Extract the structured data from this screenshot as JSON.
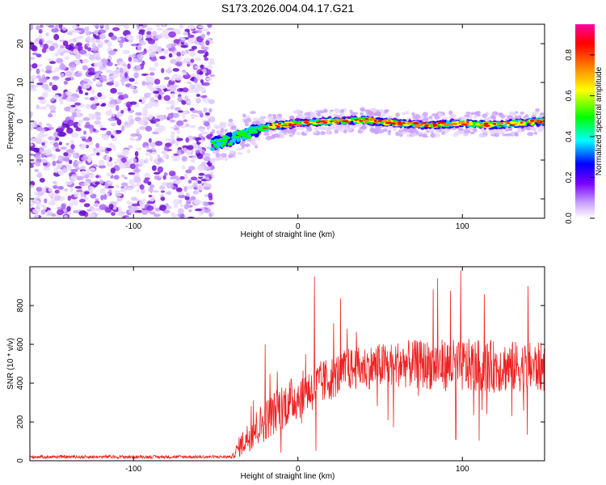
{
  "title": "S173.2026.004.04.17.G21",
  "colors": {
    "snr_line": "#ee2222",
    "noise_dots": "#8a2be2",
    "background": "#ffffff"
  },
  "chart_data": [
    {
      "type": "heatmap",
      "name": "spectrogram",
      "xlabel": "Height of straight line (km)",
      "ylabel": "Frequency (Hz)",
      "xlim": [
        -163,
        150
      ],
      "ylim": [
        -25,
        25
      ],
      "xticks": [
        -100,
        0,
        100
      ],
      "xtick_labels": [
        "-100",
        "0",
        "100"
      ],
      "yticks": [
        -20,
        -10,
        0,
        10,
        20
      ],
      "ytick_labels": [
        "-20",
        "-10",
        "0",
        "10",
        "20"
      ],
      "noise_region_x": [
        -163,
        -52
      ],
      "signal_track": [
        {
          "x": -52,
          "f": -6
        },
        {
          "x": -40,
          "f": -4.5
        },
        {
          "x": -30,
          "f": -3
        },
        {
          "x": -20,
          "f": -1.5
        },
        {
          "x": -10,
          "f": -1
        },
        {
          "x": 0,
          "f": -0.5
        },
        {
          "x": 20,
          "f": 0
        },
        {
          "x": 40,
          "f": 0.3
        },
        {
          "x": 60,
          "f": -0.5
        },
        {
          "x": 80,
          "f": -1
        },
        {
          "x": 100,
          "f": -0.5
        },
        {
          "x": 120,
          "f": -1
        },
        {
          "x": 150,
          "f": 0
        }
      ],
      "colorbar": {
        "label": "Normalized spectral amplitude",
        "range": [
          0,
          0.95
        ],
        "ticks": [
          0.0,
          0.2,
          0.4,
          0.6,
          0.8
        ],
        "tick_labels": [
          "0.0",
          "0.2",
          "0.4",
          "0.6",
          "0.8"
        ],
        "colors": [
          "#ffffff",
          "#c8a0ff",
          "#7b00ff",
          "#0000ff",
          "#00ffff",
          "#00ff00",
          "#ffff00",
          "#ff8000",
          "#ff0000",
          "#ff00a0"
        ]
      }
    },
    {
      "type": "line",
      "name": "snr",
      "xlabel": "Height of straight line (km)",
      "ylabel": "SNR (10 * v/v)",
      "xlim": [
        -163,
        150
      ],
      "ylim": [
        0,
        1000
      ],
      "xticks": [
        -100,
        0,
        100
      ],
      "xtick_labels": [
        "-100",
        "0",
        "100"
      ],
      "yticks": [
        0,
        200,
        400,
        600,
        800
      ],
      "ytick_labels": [
        "0",
        "200",
        "400",
        "600",
        "800"
      ],
      "series": [
        {
          "name": "SNR",
          "envelope": [
            {
              "x": -163,
              "mean": 20,
              "spread": 8
            },
            {
              "x": -40,
              "mean": 20,
              "spread": 8
            },
            {
              "x": -35,
              "mean": 80,
              "spread": 60
            },
            {
              "x": -25,
              "mean": 170,
              "spread": 100
            },
            {
              "x": -10,
              "mean": 280,
              "spread": 120
            },
            {
              "x": 10,
              "mean": 380,
              "spread": 120
            },
            {
              "x": 30,
              "mean": 470,
              "spread": 110
            },
            {
              "x": 60,
              "mean": 500,
              "spread": 120
            },
            {
              "x": 100,
              "mean": 490,
              "spread": 140
            },
            {
              "x": 150,
              "mean": 480,
              "spread": 130
            }
          ],
          "spikes": [
            {
              "x": -20,
              "y": 600
            },
            {
              "x": 10,
              "y": 950
            },
            {
              "x": 11,
              "y": 50
            },
            {
              "x": 85,
              "y": 940
            },
            {
              "x": 99,
              "y": 980
            },
            {
              "x": 96,
              "y": 110
            },
            {
              "x": 140,
              "y": 900
            },
            {
              "x": 130,
              "y": 230
            }
          ]
        }
      ]
    }
  ]
}
